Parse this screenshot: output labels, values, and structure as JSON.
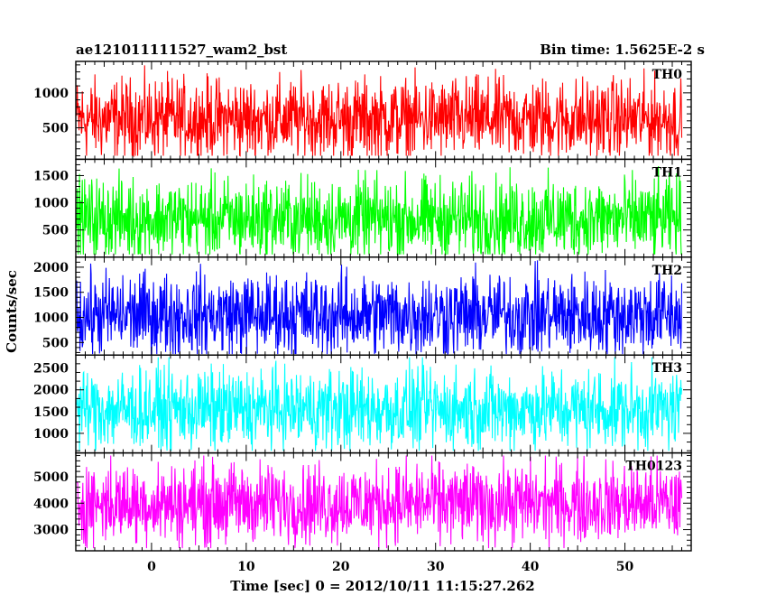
{
  "header": {
    "title": "ae121011111527_wam2_bst",
    "bin_time": "Bin time: 1.5625E-2 s"
  },
  "chart_data": {
    "type": "line",
    "xlabel": "Time [sec] 0 = 2012/10/11 11:15:27.262",
    "ylabel": "Counts/sec",
    "xlim": [
      -8,
      57
    ],
    "data_x_range": [
      -7.9,
      56
    ],
    "x_ticks": [
      0,
      10,
      20,
      30,
      40,
      50
    ],
    "x_tick_labels": [
      "0",
      "10",
      "20",
      "30",
      "40",
      "50"
    ],
    "panels": [
      {
        "label": "TH0",
        "color": "#ff0000",
        "ylim": [
          50,
          1450
        ],
        "yticks": [
          500,
          1000
        ],
        "ytick_labels": [
          "500",
          "1000"
        ],
        "mean": 620,
        "min": 100,
        "max": 1430
      },
      {
        "label": "TH1",
        "color": "#00ff00",
        "ylim": [
          0,
          1800
        ],
        "yticks": [
          500,
          1000,
          1500
        ],
        "ytick_labels": [
          "500",
          "1000",
          "1500"
        ],
        "mean": 700,
        "min": 50,
        "max": 1780
      },
      {
        "label": "TH2",
        "color": "#0000ff",
        "ylim": [
          250,
          2200
        ],
        "yticks": [
          500,
          1000,
          1500,
          2000
        ],
        "ytick_labels": [
          "500",
          "1000",
          "1500",
          "2000"
        ],
        "mean": 1050,
        "min": 270,
        "max": 2170
      },
      {
        "label": "TH3",
        "color": "#00ffff",
        "ylim": [
          550,
          2800
        ],
        "yticks": [
          1000,
          1500,
          2000,
          2500
        ],
        "ytick_labels": [
          "1000",
          "1500",
          "2000",
          "2500"
        ],
        "mean": 1550,
        "min": 600,
        "max": 2750
      },
      {
        "label": "TH0123",
        "color": "#ff00ff",
        "ylim": [
          2200,
          5900
        ],
        "yticks": [
          3000,
          4000,
          5000
        ],
        "ytick_labels": [
          "3000",
          "4000",
          "5000"
        ],
        "mean": 4000,
        "min": 2300,
        "max": 5800
      }
    ]
  }
}
